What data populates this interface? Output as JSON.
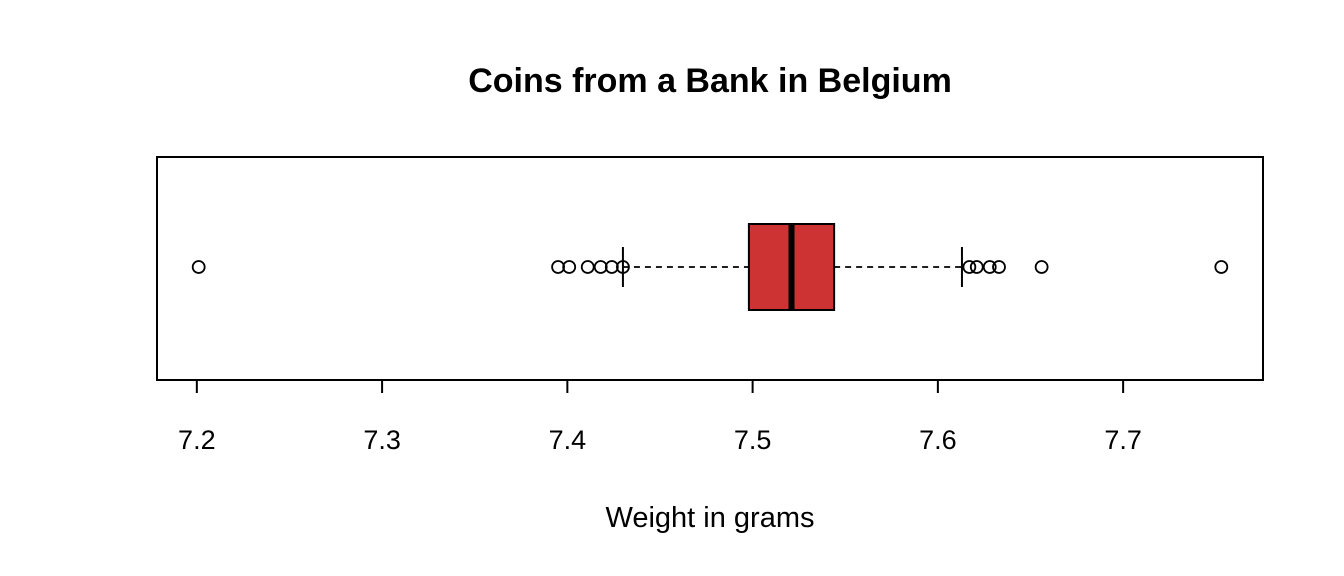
{
  "chart_data": {
    "type": "boxplot",
    "orientation": "horizontal",
    "title": "Coins from a Bank in Belgium",
    "xlabel": "Weight in grams",
    "ylabel": "",
    "xlim": [
      7.1785,
      7.7755
    ],
    "ticks": [
      "7.2",
      "7.3",
      "7.4",
      "7.5",
      "7.6",
      "7.7"
    ],
    "tick_values": [
      7.2,
      7.3,
      7.4,
      7.5,
      7.6,
      7.7
    ],
    "grid": false,
    "box": {
      "whisker_low": 7.43,
      "q1": 7.498,
      "median": 7.521,
      "q3": 7.544,
      "whisker_high": 7.613,
      "fill_color": "#cd3333"
    },
    "outliers": [
      7.201,
      7.395,
      7.401,
      7.411,
      7.418,
      7.424,
      7.43,
      7.617,
      7.621,
      7.628,
      7.633,
      7.656,
      7.753
    ]
  }
}
